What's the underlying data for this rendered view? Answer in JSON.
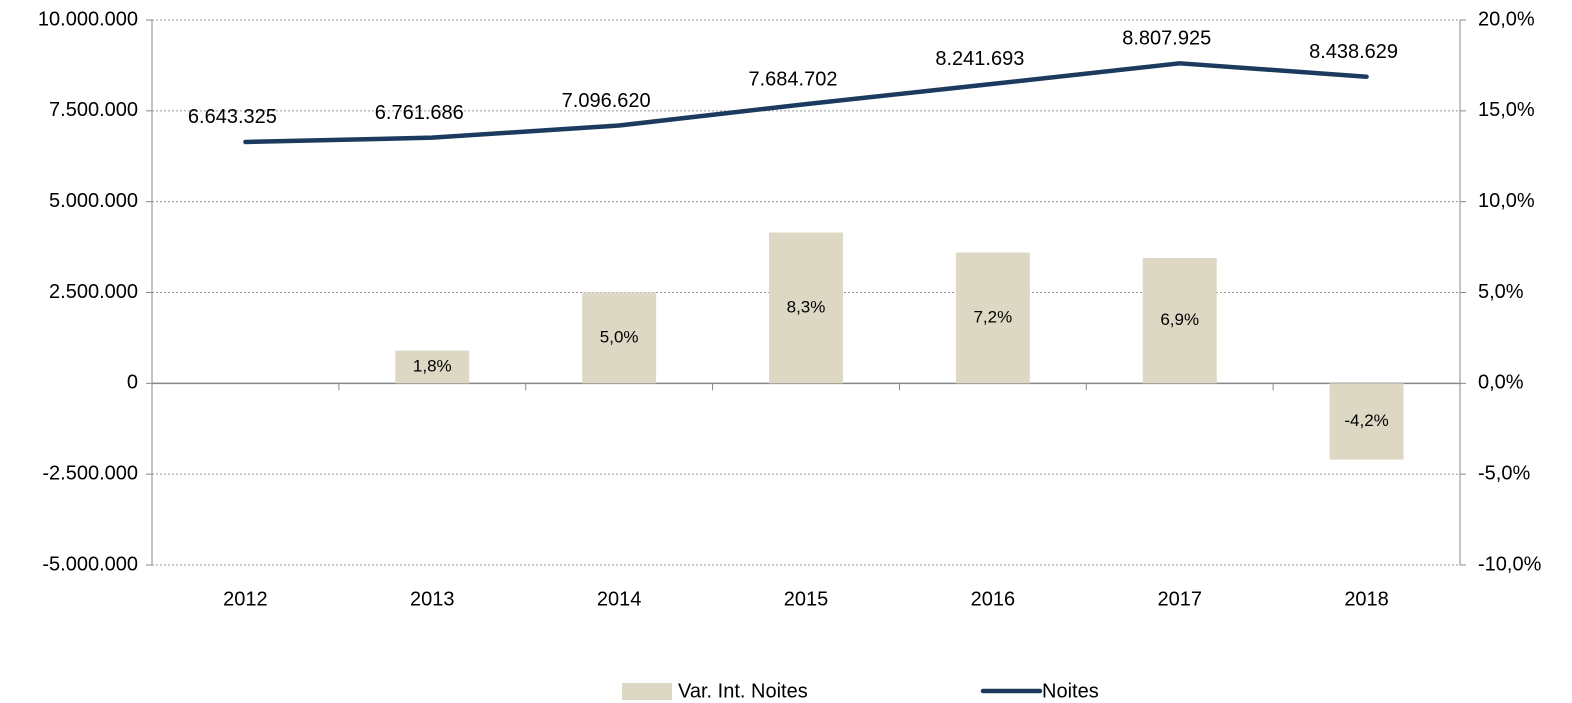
{
  "chart_data": {
    "type": "bar",
    "categories": [
      "2012",
      "2013",
      "2014",
      "2015",
      "2016",
      "2017",
      "2018"
    ],
    "series": [
      {
        "name": "Var. Int. Noites",
        "type": "bar",
        "axis": "y2",
        "color": "#ddd8c4",
        "values": [
          null,
          1.8,
          5.0,
          8.3,
          7.2,
          6.9,
          -4.2
        ],
        "value_labels": [
          null,
          "1,8%",
          "5,0%",
          "8,3%",
          "7,2%",
          "6,9%",
          "-4,2%"
        ]
      },
      {
        "name": "Noites",
        "type": "line",
        "axis": "y",
        "color": "#1b3a5e",
        "values": [
          6643325,
          6761686,
          7096620,
          7684702,
          8241693,
          8807925,
          8438629
        ],
        "value_labels": [
          "6.643.325",
          "6.761.686",
          "7.096.620",
          "7.684.702",
          "8.241.693",
          "8.807.925",
          "8.438.629"
        ]
      }
    ],
    "ylim": [
      -5000000,
      10000000
    ],
    "yticks": [
      {
        "value": -5000000,
        "label": "-5.000.000"
      },
      {
        "value": -2500000,
        "label": "-2.500.000"
      },
      0,
      {
        "value": 2500000,
        "label": "2.500.000"
      },
      {
        "value": 5000000,
        "label": "5.000.000"
      },
      {
        "value": 7500000,
        "label": "7.500.000"
      },
      {
        "value": 10000000,
        "label": "10.000.000"
      }
    ],
    "y2lim": [
      -10,
      20
    ],
    "y2ticks": [
      {
        "value": -10,
        "label": "-10,0%"
      },
      {
        "value": -5,
        "label": "-5,0%"
      },
      {
        "value": 0,
        "label": "0,0%"
      },
      {
        "value": 5,
        "label": "5,0%"
      },
      {
        "value": 10,
        "label": "10,0%"
      },
      {
        "value": 15,
        "label": "15,0%"
      },
      {
        "value": 20,
        "label": "20,0%"
      }
    ],
    "grid": true,
    "legend": "bottom"
  }
}
